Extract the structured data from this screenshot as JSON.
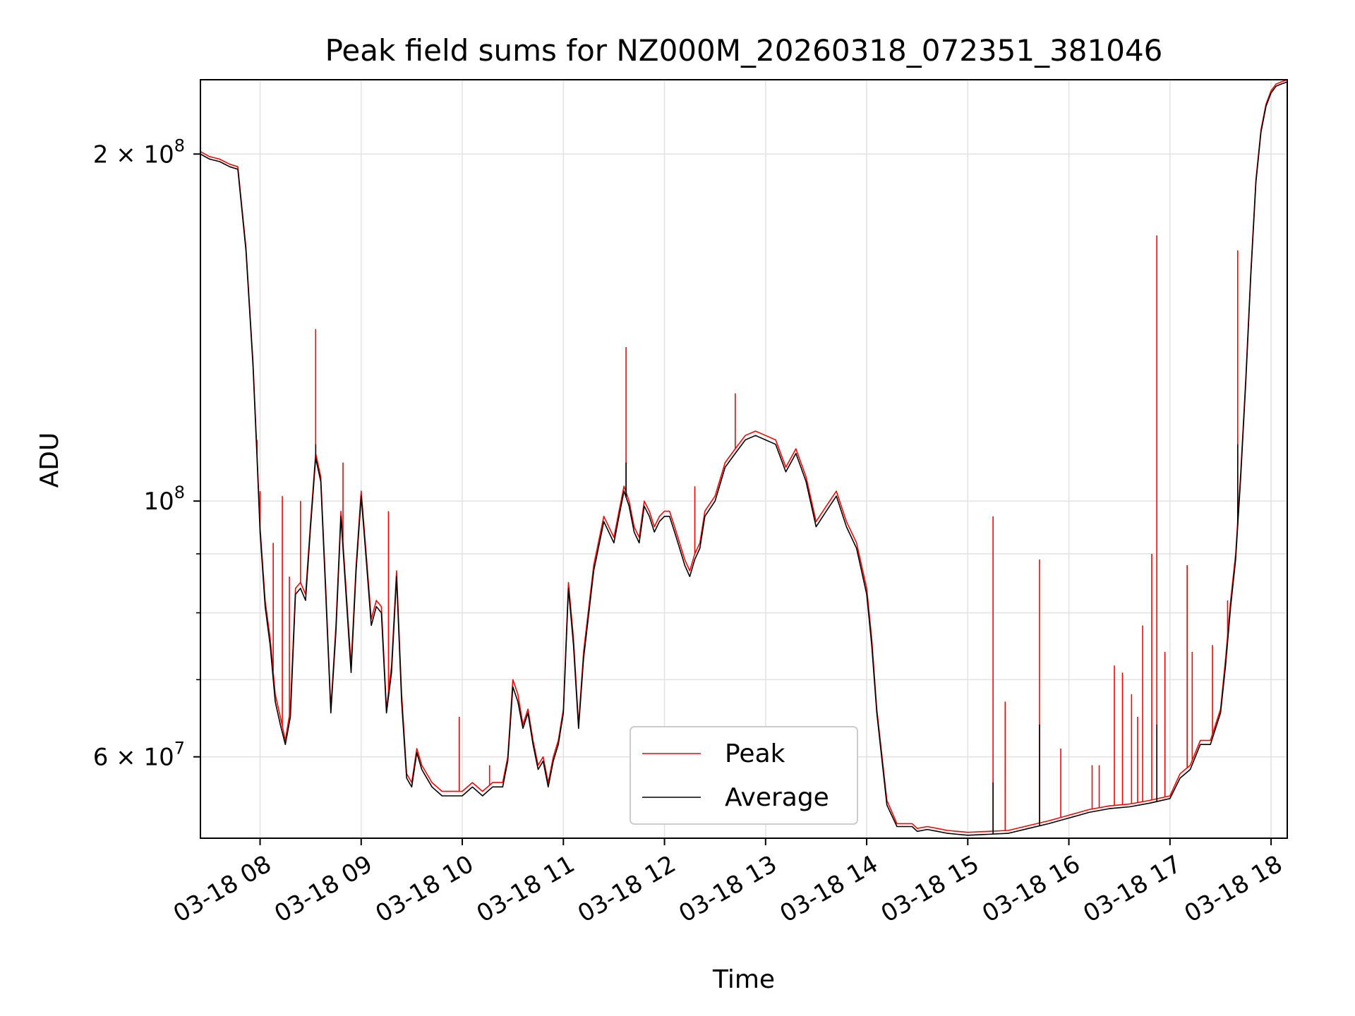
{
  "chart_data": {
    "type": "line",
    "title": "Peak field sums for NZ000M_20260318_072351_381046",
    "xlabel": "Time",
    "ylabel": "ADU",
    "yscale": "log",
    "ylim": [
      51000000,
      232000000
    ],
    "xlim": [
      7.41,
      18.16
    ],
    "grid": true,
    "legend_position": "lower-center",
    "x_ticks": [
      {
        "value": 8,
        "label": "03-18 08"
      },
      {
        "value": 9,
        "label": "03-18 09"
      },
      {
        "value": 10,
        "label": "03-18 10"
      },
      {
        "value": 11,
        "label": "03-18 11"
      },
      {
        "value": 12,
        "label": "03-18 12"
      },
      {
        "value": 13,
        "label": "03-18 13"
      },
      {
        "value": 14,
        "label": "03-18 14"
      },
      {
        "value": 15,
        "label": "03-18 15"
      },
      {
        "value": 16,
        "label": "03-18 16"
      },
      {
        "value": 17,
        "label": "03-18 17"
      },
      {
        "value": 18,
        "label": "03-18 18"
      }
    ],
    "y_ticks_major": [
      {
        "value": 60000000,
        "label_base": "6 × 10",
        "label_exp": "7"
      },
      {
        "value": 100000000,
        "label_base": "10",
        "label_exp": "8"
      },
      {
        "value": 200000000,
        "label_base": "2 × 10",
        "label_exp": "8"
      }
    ],
    "y_ticks_minor": [
      70000000,
      80000000,
      90000000
    ],
    "series": [
      {
        "name": "Peak",
        "color": "#ff0000",
        "x": [
          7.41,
          7.5,
          7.6,
          7.7,
          7.78,
          7.86,
          7.93,
          7.97,
          8.0,
          8.05,
          8.1,
          8.15,
          8.2,
          8.25,
          8.3,
          8.35,
          8.4,
          8.45,
          8.5,
          8.55,
          8.6,
          8.65,
          8.7,
          8.75,
          8.8,
          8.85,
          8.9,
          8.95,
          9.0,
          9.05,
          9.1,
          9.15,
          9.2,
          9.25,
          9.3,
          9.35,
          9.4,
          9.45,
          9.5,
          9.55,
          9.6,
          9.7,
          9.8,
          9.9,
          10.0,
          10.1,
          10.2,
          10.3,
          10.4,
          10.45,
          10.5,
          10.55,
          10.6,
          10.65,
          10.7,
          10.75,
          10.8,
          10.85,
          10.9,
          10.95,
          11.0,
          11.05,
          11.1,
          11.15,
          11.2,
          11.3,
          11.4,
          11.5,
          11.55,
          11.6,
          11.65,
          11.7,
          11.75,
          11.8,
          11.85,
          11.9,
          11.95,
          12.0,
          12.05,
          12.1,
          12.15,
          12.2,
          12.25,
          12.3,
          12.35,
          12.4,
          12.5,
          12.6,
          12.7,
          12.8,
          12.9,
          13.0,
          13.1,
          13.2,
          13.3,
          13.4,
          13.5,
          13.6,
          13.7,
          13.8,
          13.9,
          14.0,
          14.05,
          14.1,
          14.2,
          14.3,
          14.4,
          14.45,
          14.5,
          14.6,
          14.7,
          14.8,
          14.9,
          15.0,
          15.2,
          15.4,
          15.6,
          15.8,
          16.0,
          16.2,
          16.4,
          16.6,
          16.8,
          17.0,
          17.1,
          17.2,
          17.3,
          17.4,
          17.5,
          17.55,
          17.6,
          17.65,
          17.7,
          17.75,
          17.8,
          17.85,
          17.9,
          17.95,
          18.0,
          18.05,
          18.1,
          18.16
        ],
        "y": [
          201000000,
          199000000,
          198000000,
          196000000,
          195000000,
          166000000,
          132000000,
          110000000,
          95000000,
          82000000,
          76000000,
          68000000,
          65000000,
          62000000,
          66000000,
          84000000,
          85000000,
          83000000,
          96000000,
          110000000,
          105000000,
          84000000,
          66000000,
          78000000,
          98000000,
          84000000,
          72000000,
          88000000,
          102000000,
          90000000,
          79000000,
          82000000,
          81000000,
          66000000,
          72000000,
          87000000,
          68000000,
          58000000,
          57000000,
          61000000,
          59000000,
          57000000,
          56000000,
          56000000,
          56000000,
          57000000,
          56000000,
          57000000,
          57000000,
          60000000,
          70000000,
          68000000,
          64000000,
          66000000,
          62000000,
          59000000,
          60000000,
          57000000,
          60000000,
          62000000,
          66000000,
          85000000,
          76000000,
          64000000,
          74000000,
          88000000,
          97000000,
          93000000,
          98000000,
          103000000,
          100000000,
          95000000,
          93000000,
          100000000,
          98000000,
          95000000,
          97000000,
          98000000,
          98000000,
          95000000,
          92000000,
          89000000,
          87000000,
          90000000,
          92000000,
          98000000,
          101000000,
          108000000,
          111000000,
          114000000,
          115000000,
          114000000,
          113000000,
          107000000,
          111000000,
          105000000,
          96000000,
          99000000,
          102000000,
          96000000,
          92000000,
          84000000,
          76000000,
          66000000,
          55000000,
          52500000,
          52500000,
          52500000,
          52000000,
          52200000,
          52000000,
          51800000,
          51700000,
          51600000,
          51700000,
          51800000,
          52300000,
          52800000,
          53400000,
          54000000,
          54400000,
          54600000,
          55000000,
          55500000,
          58000000,
          59000000,
          62000000,
          62000000,
          66000000,
          73000000,
          82000000,
          90000000,
          106000000,
          128000000,
          158000000,
          190000000,
          210000000,
          221000000,
          227000000,
          230000000,
          231000000,
          232000000
        ],
        "spikes": [
          {
            "x": 7.97,
            "y": 113000000
          },
          {
            "x": 8.0,
            "y": 102000000
          },
          {
            "x": 8.13,
            "y": 92000000
          },
          {
            "x": 8.22,
            "y": 101000000
          },
          {
            "x": 8.29,
            "y": 86000000
          },
          {
            "x": 8.4,
            "y": 100000000
          },
          {
            "x": 8.55,
            "y": 141000000
          },
          {
            "x": 8.82,
            "y": 108000000
          },
          {
            "x": 9.27,
            "y": 98000000
          },
          {
            "x": 9.97,
            "y": 65000000
          },
          {
            "x": 10.27,
            "y": 59000000
          },
          {
            "x": 11.62,
            "y": 136000000
          },
          {
            "x": 12.3,
            "y": 103000000
          },
          {
            "x": 12.7,
            "y": 124000000
          },
          {
            "x": 15.25,
            "y": 97000000
          },
          {
            "x": 15.37,
            "y": 67000000
          },
          {
            "x": 15.71,
            "y": 89000000
          },
          {
            "x": 15.92,
            "y": 61000000
          },
          {
            "x": 16.23,
            "y": 59000000
          },
          {
            "x": 16.3,
            "y": 59000000
          },
          {
            "x": 16.45,
            "y": 72000000
          },
          {
            "x": 16.53,
            "y": 71000000
          },
          {
            "x": 16.62,
            "y": 68000000
          },
          {
            "x": 16.68,
            "y": 65000000
          },
          {
            "x": 16.73,
            "y": 78000000
          },
          {
            "x": 16.82,
            "y": 90000000
          },
          {
            "x": 16.87,
            "y": 170000000
          },
          {
            "x": 16.95,
            "y": 74000000
          },
          {
            "x": 17.17,
            "y": 88000000
          },
          {
            "x": 17.22,
            "y": 74000000
          },
          {
            "x": 17.42,
            "y": 75000000
          },
          {
            "x": 17.57,
            "y": 82000000
          },
          {
            "x": 17.67,
            "y": 165000000
          }
        ]
      },
      {
        "name": "Average",
        "color": "#000000",
        "x": [
          7.41,
          7.5,
          7.6,
          7.7,
          7.78,
          7.86,
          7.93,
          7.97,
          8.0,
          8.05,
          8.1,
          8.15,
          8.2,
          8.25,
          8.3,
          8.35,
          8.4,
          8.45,
          8.5,
          8.55,
          8.6,
          8.65,
          8.7,
          8.75,
          8.8,
          8.85,
          8.9,
          8.95,
          9.0,
          9.05,
          9.1,
          9.15,
          9.2,
          9.25,
          9.3,
          9.35,
          9.4,
          9.45,
          9.5,
          9.55,
          9.6,
          9.7,
          9.8,
          9.9,
          10.0,
          10.1,
          10.2,
          10.3,
          10.4,
          10.45,
          10.5,
          10.55,
          10.6,
          10.65,
          10.7,
          10.75,
          10.8,
          10.85,
          10.9,
          10.95,
          11.0,
          11.05,
          11.1,
          11.15,
          11.2,
          11.3,
          11.4,
          11.5,
          11.55,
          11.6,
          11.65,
          11.7,
          11.75,
          11.8,
          11.85,
          11.9,
          11.95,
          12.0,
          12.05,
          12.1,
          12.15,
          12.2,
          12.25,
          12.3,
          12.35,
          12.4,
          12.5,
          12.6,
          12.7,
          12.8,
          12.9,
          13.0,
          13.1,
          13.2,
          13.3,
          13.4,
          13.5,
          13.6,
          13.7,
          13.8,
          13.9,
          14.0,
          14.05,
          14.1,
          14.2,
          14.3,
          14.4,
          14.45,
          14.5,
          14.6,
          14.7,
          14.8,
          14.9,
          15.0,
          15.2,
          15.4,
          15.6,
          15.8,
          16.0,
          16.2,
          16.4,
          16.6,
          16.8,
          17.0,
          17.1,
          17.2,
          17.3,
          17.4,
          17.5,
          17.55,
          17.6,
          17.65,
          17.7,
          17.75,
          17.8,
          17.85,
          17.9,
          17.95,
          18.0,
          18.05,
          18.1,
          18.16
        ],
        "y": [
          200000000,
          198000000,
          197000000,
          195000000,
          194000000,
          165000000,
          131000000,
          109000000,
          94000000,
          81000000,
          75000000,
          67000000,
          64000000,
          61500000,
          65000000,
          83000000,
          84000000,
          82000000,
          95000000,
          109000000,
          104000000,
          83000000,
          65500000,
          77000000,
          97000000,
          83000000,
          71000000,
          87000000,
          101000000,
          89000000,
          78000000,
          81000000,
          80000000,
          65500000,
          71000000,
          86000000,
          67000000,
          57500000,
          56500000,
          60500000,
          58500000,
          56500000,
          55500000,
          55500000,
          55500000,
          56500000,
          55500000,
          56500000,
          56500000,
          59500000,
          69000000,
          67000000,
          63500000,
          65500000,
          61500000,
          58500000,
          59500000,
          56500000,
          59500000,
          61500000,
          65500000,
          84000000,
          75000000,
          63500000,
          73000000,
          87000000,
          96000000,
          92000000,
          97000000,
          102000000,
          99000000,
          94000000,
          92000000,
          99000000,
          97000000,
          94000000,
          96000000,
          97000000,
          97000000,
          94000000,
          91000000,
          88000000,
          86000000,
          89000000,
          91000000,
          97000000,
          100000000,
          107000000,
          110000000,
          113000000,
          114000000,
          113000000,
          112000000,
          106000000,
          110000000,
          104000000,
          95000000,
          98000000,
          101000000,
          95000000,
          91000000,
          83000000,
          75000000,
          65500000,
          54500000,
          52200000,
          52200000,
          52200000,
          51700000,
          51900000,
          51700000,
          51500000,
          51400000,
          51300000,
          51400000,
          51500000,
          52000000,
          52500000,
          53100000,
          53700000,
          54100000,
          54300000,
          54700000,
          55200000,
          57500000,
          58500000,
          61500000,
          61500000,
          65500000,
          72000000,
          81000000,
          89000000,
          105000000,
          127000000,
          157000000,
          189000000,
          209000000,
          220000000,
          226000000,
          229000000,
          230000000,
          231000000
        ],
        "spikes": [
          {
            "x": 8.55,
            "y": 112000000
          },
          {
            "x": 11.62,
            "y": 108000000
          },
          {
            "x": 15.25,
            "y": 57000000
          },
          {
            "x": 15.71,
            "y": 64000000
          },
          {
            "x": 16.87,
            "y": 64000000
          },
          {
            "x": 17.67,
            "y": 112000000
          }
        ]
      }
    ]
  }
}
